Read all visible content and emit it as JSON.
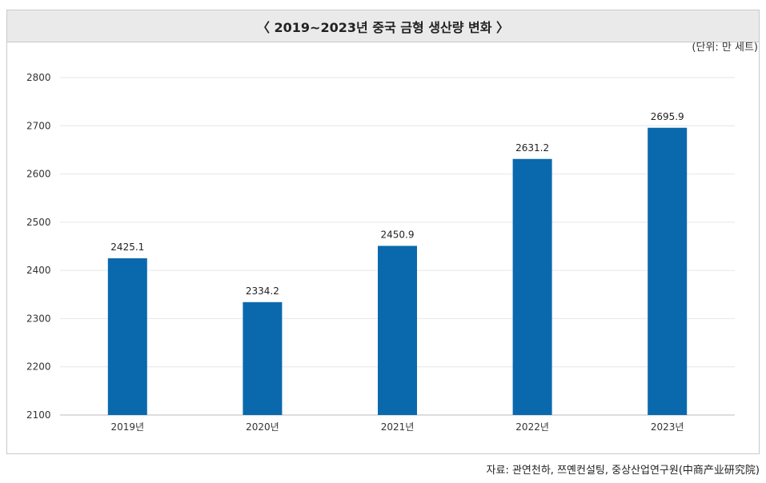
{
  "chart_data": {
    "type": "bar",
    "title": "〈 2019~2023년 중국 금형 생산량 변화 〉",
    "unit": "(단위: 만 세트)",
    "categories": [
      "2019년",
      "2020년",
      "2021년",
      "2022년",
      "2023년"
    ],
    "values": [
      2425.1,
      2334.2,
      2450.9,
      2631.2,
      2695.9
    ],
    "value_labels": [
      "2425.1",
      "2334.2",
      "2450.9",
      "2631.2",
      "2695.9"
    ],
    "ylim": [
      2100,
      2800
    ],
    "yticks": [
      2100,
      2200,
      2300,
      2400,
      2500,
      2600,
      2700,
      2800
    ],
    "bar_color": "#0a69ad",
    "grid": true
  },
  "source": "자료: 관연천하, 쯔옌컨설팅, 중상산업연구원(中商产业研究院)"
}
